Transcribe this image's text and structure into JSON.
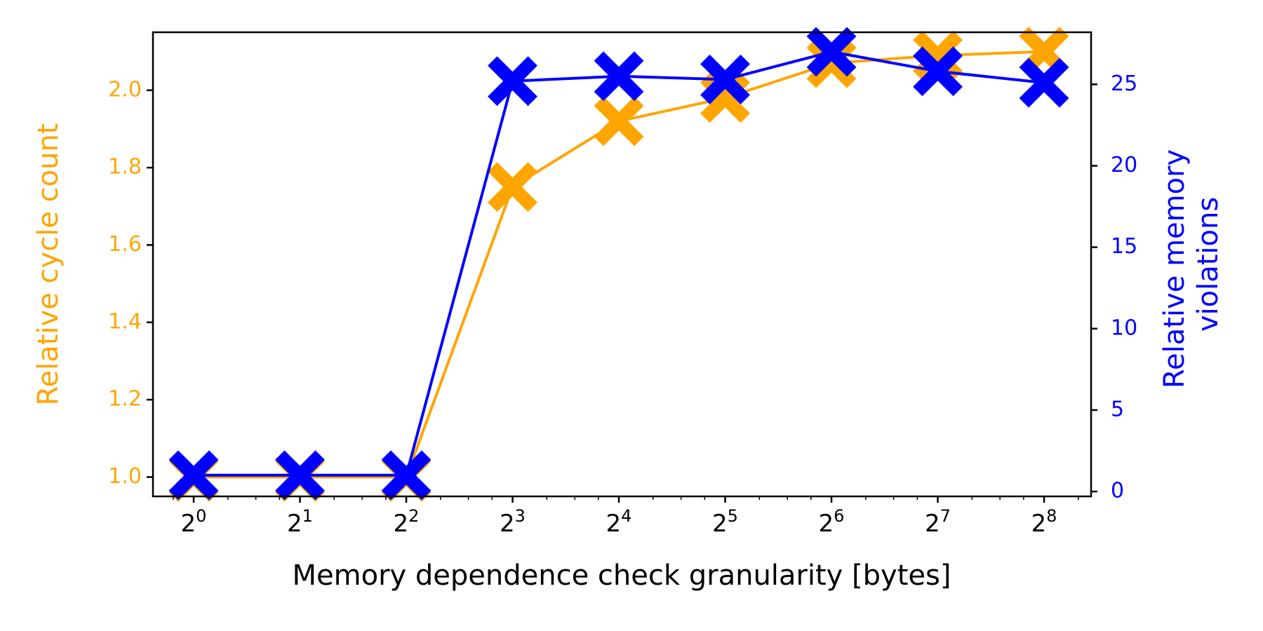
{
  "chart_data": {
    "type": "line",
    "xlabel": "Memory dependence check granularity [bytes]",
    "x_axis": {
      "scale": "log2",
      "tick_base": "2",
      "tick_exponents": [
        "0",
        "1",
        "2",
        "3",
        "4",
        "5",
        "6",
        "7",
        "8"
      ],
      "x": [
        1,
        2,
        4,
        8,
        16,
        32,
        64,
        128,
        256
      ]
    },
    "y_left": {
      "label": "Relative cycle count",
      "color": "#ffa500",
      "ylim": [
        0.95,
        2.15
      ],
      "ticks": [
        "1.0",
        "1.2",
        "1.4",
        "1.6",
        "1.8",
        "2.0"
      ]
    },
    "y_right": {
      "label_lines": [
        "Relative memory",
        "violations"
      ],
      "color": "#0000ff",
      "ylim": [
        -0.3,
        28.2
      ],
      "ticks": [
        "0",
        "5",
        "10",
        "15",
        "20",
        "25"
      ]
    },
    "series": [
      {
        "axis": "left",
        "color": "#ffa500",
        "marker": "X",
        "values": [
          1.0,
          1.0,
          1.0,
          1.75,
          1.92,
          1.98,
          2.07,
          2.09,
          2.1
        ]
      },
      {
        "axis": "right",
        "color": "#0000ff",
        "marker": "X",
        "values": [
          1.0,
          1.0,
          1.0,
          25.2,
          25.5,
          25.3,
          27.0,
          25.8,
          25.1
        ]
      }
    ],
    "grid": false,
    "legend": "none"
  }
}
